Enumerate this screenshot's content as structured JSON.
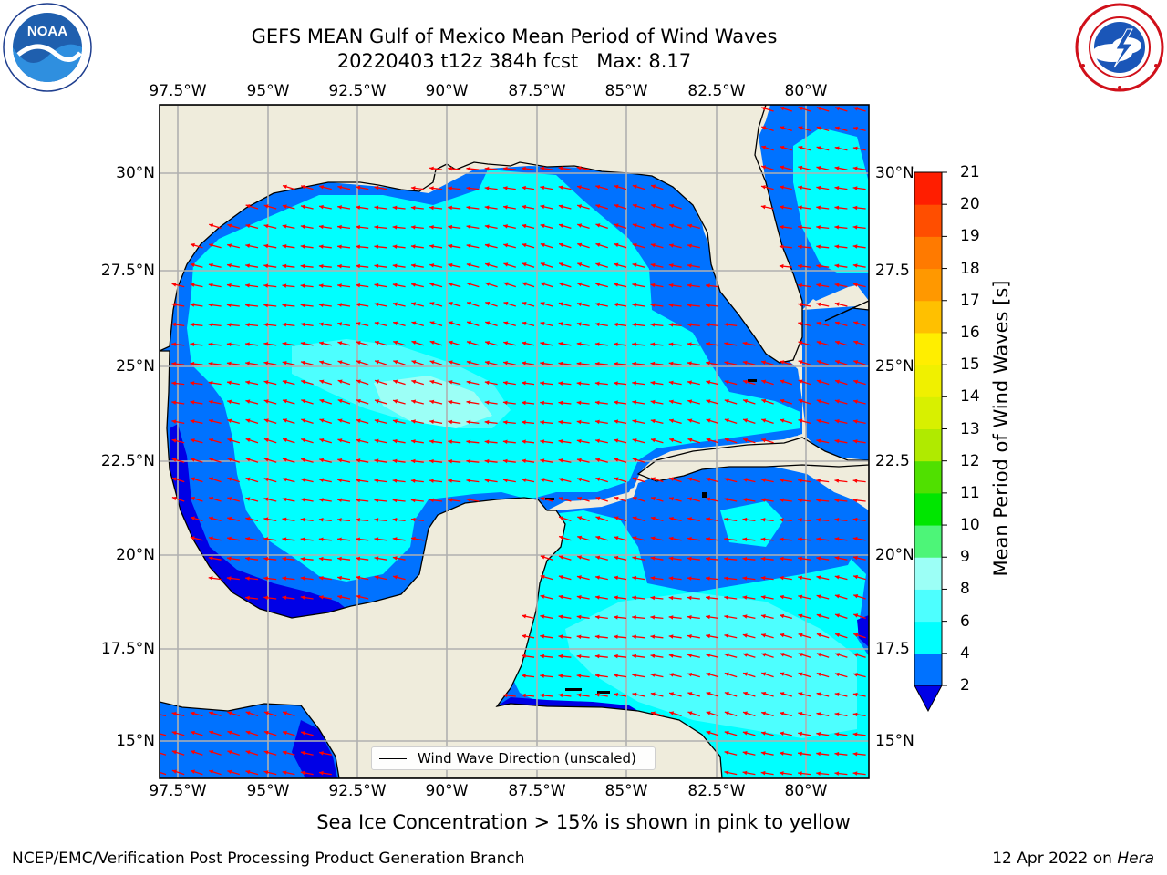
{
  "title": {
    "line1": "GEFS MEAN Gulf of Mexico Mean Period of Wind Waves",
    "line2": "20220403 t12z 384h fcst   Max: 8.17"
  },
  "map": {
    "lon_labels": [
      "97.5°W",
      "95°W",
      "92.5°W",
      "90°W",
      "87.5°W",
      "85°W",
      "82.5°W",
      "80°W"
    ],
    "lat_labels_left": [
      "30°N",
      "27.5°N",
      "25°N",
      "22.5°N",
      "20°N",
      "17.5°N",
      "15°N"
    ],
    "lat_labels_right": [
      "30°N",
      "27.5",
      "25°N",
      "22.5",
      "20°N",
      "17.5",
      "15°N"
    ],
    "land_color": "#efecdc",
    "arrow_color": "#ff0000",
    "grid_color": "#b0b0b0",
    "wave_direction": "toward west-northwest"
  },
  "legend": {
    "label": "Wind Wave Direction (unscaled)"
  },
  "colorbar": {
    "label": "Mean Period of Wind Waves [s]",
    "ticks": [
      "21",
      "20",
      "19",
      "18",
      "17",
      "16",
      "15",
      "14",
      "13",
      "12",
      "11",
      "10",
      "9",
      "8",
      "6",
      "4",
      "2"
    ],
    "colors": [
      "#0000e6",
      "#0072ff",
      "#00ffff",
      "#4dffff",
      "#9cfff6",
      "#4df578",
      "#00e600",
      "#50e000",
      "#b0ea00",
      "#d8f000",
      "#f0f000",
      "#ffee00",
      "#ffc000",
      "#ff9800",
      "#ff7a00",
      "#ff4e00",
      "#ff1e00"
    ]
  },
  "note": "Sea Ice Concentration > 15% is shown in pink to yellow",
  "footer": {
    "left": "NCEP/EMC/Verification Post Processing Product Generation Branch",
    "date": "12 Apr 2022 on",
    "machine": "Hera"
  },
  "logos": {
    "noaa_text": "NOAA",
    "nws_text": "NATIONAL WEATHER SERVICE"
  }
}
